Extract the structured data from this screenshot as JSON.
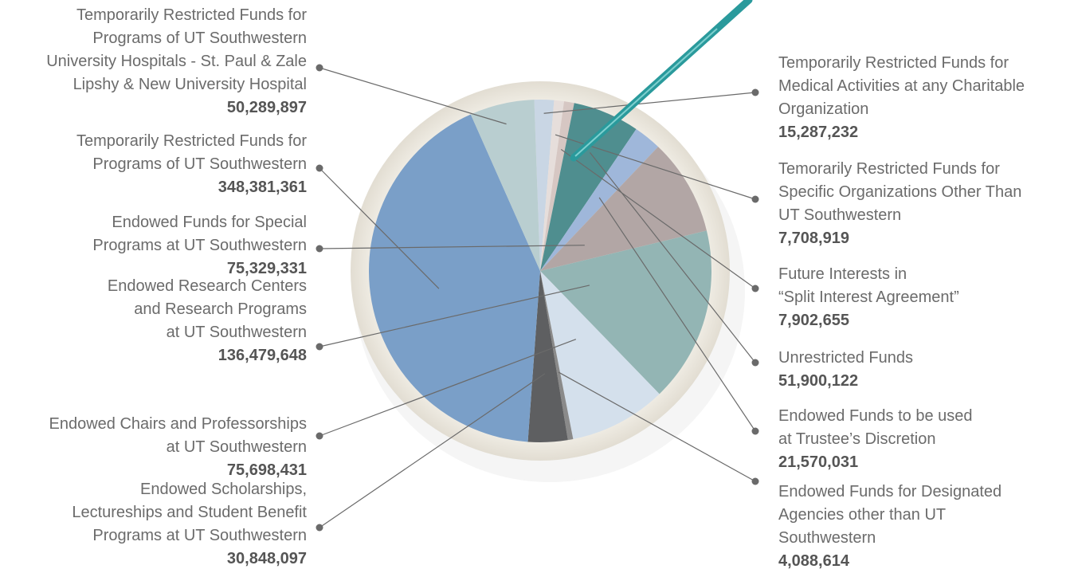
{
  "chart_data": {
    "type": "pie",
    "categories": [
      "Temporarily Restricted Funds for\nMedical Activities at any Charitable\nOrganization",
      "Temorarily Restricted Funds for\nSpecific Organizations Other Than\nUT Southwestern",
      "Future Interests in\n“Split Interest Agreement”",
      "Unrestricted Funds",
      "Endowed Funds to be used\nat Trustee’s Discretion",
      "Endowed Funds for Special\nPrograms at UT Southwestern",
      "Endowed Research Centers\nand Research Programs\nat UT Southwestern",
      "Endowed Chairs and Professorships\nat UT Southwestern",
      "Endowed Funds for Designated\nAgencies other than UT\nSouthwestern",
      "Endowed Scholarships,\nLectureships and Student Benefit\nPrograms at UT Southwestern",
      "Temporarily Restricted Funds for\nPrograms of UT Southwestern",
      "Temporarily Restricted Funds for\nPrograms of UT Southwestern\nUniversity Hospitals - St. Paul & Zale\nLipshy & New University Hospital"
    ],
    "values": [
      15287232,
      7708919,
      7902655,
      51900122,
      21570031,
      75329331,
      136479648,
      75698431,
      4088614,
      30848097,
      348381361,
      50289897
    ],
    "value_labels": [
      "15,287,232",
      "7,708,919",
      "7,902,655",
      "51,900,122",
      "21,570,031",
      "75,329,331",
      "136,479,648",
      "75,698,431",
      "4,088,614",
      "30,848,097",
      "348,381,361",
      "50,289,897"
    ],
    "colors": [
      "#c9d6e4",
      "#e6dedb",
      "#d6c7c3",
      "#4f8e8f",
      "#9fb7da",
      "#b2a6a5",
      "#93b5b4",
      "#d4e0ec",
      "#8a8a8a",
      "#5e5f61",
      "#7a9fc8",
      "#b9ced0"
    ]
  }
}
